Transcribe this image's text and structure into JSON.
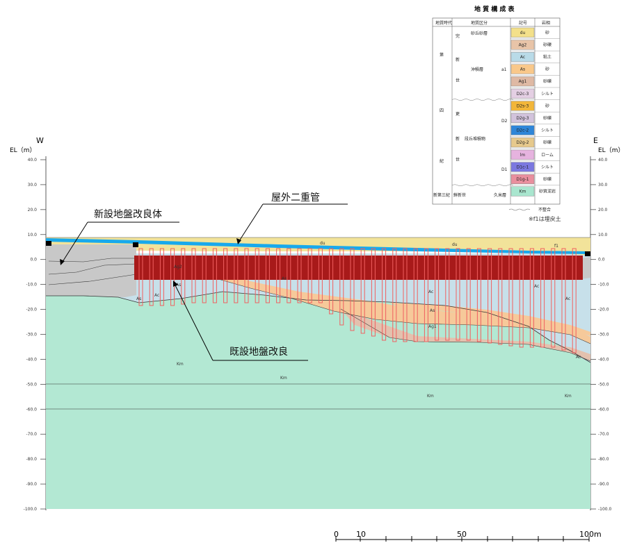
{
  "west_label": "W",
  "east_label": "E",
  "elevation_axis_label": "EL（m）",
  "elevation_ticks": [
    "40.0",
    "30.0",
    "20.0",
    "10.0",
    "0.0",
    "-10.0",
    "-20.0",
    "-30.0",
    "-40.0",
    "-50.0",
    "-60.0",
    "-70.0",
    "-80.0",
    "-90.0",
    "-100.0"
  ],
  "elevation_tick_values": [
    40,
    30,
    20,
    10,
    0,
    -10,
    -20,
    -30,
    -40,
    -50,
    -60,
    -70,
    -80,
    -90,
    -100
  ],
  "callouts": {
    "outdoor_pipe": "屋外二重管",
    "new_improvement": "新設地盤改良体",
    "existing_improvement": "既設地盤改良"
  },
  "layer_labels": {
    "du_left": "du",
    "du_right": "du",
    "f1": "f1",
    "ag2": "Ag2",
    "ag1": "Ag1",
    "as1": "As",
    "as2": "As",
    "as3": "As",
    "ac1": "Ac",
    "ac2": "Ac",
    "ac3": "Ac",
    "ac4": "Ac",
    "as_w": "As",
    "ac_w": "Ac",
    "km1": "Km",
    "km2": "Km",
    "km3": "Km",
    "km4": "Km"
  },
  "scale_bar": {
    "labels": [
      "0",
      "10",
      "50",
      "100m"
    ]
  },
  "legend": {
    "title": "地 質 構 成 表",
    "headers": [
      "地質時代",
      "地質区分",
      "記号",
      "岩相"
    ],
    "era_chars": [
      "第",
      "四",
      "紀"
    ],
    "epoch_holocene": [
      "完",
      "新",
      "世"
    ],
    "epoch_pleistocene": [
      "更",
      "新",
      "世"
    ],
    "dune_sand": "砂丘砂層",
    "alluvium": "沖積層",
    "terrace": "段丘堆積物",
    "kume": "久米層",
    "neogene": "新第三紀",
    "pliocene": "鮮新世",
    "group_a1": "a1",
    "group_d2": "D2",
    "group_d1": "D1",
    "rows": [
      {
        "code": "du",
        "rock": "砂",
        "color": "#f3e08a"
      },
      {
        "code": "Ag2",
        "rock": "砂礫",
        "color": "#e8c4a8"
      },
      {
        "code": "Ac",
        "rock": "粘土",
        "color": "#b9dbe8"
      },
      {
        "code": "As",
        "rock": "砂",
        "color": "#f9c88a"
      },
      {
        "code": "Ag1",
        "rock": "砂礫",
        "color": "#dfb9a4"
      },
      {
        "code": "D2c-3",
        "rock": "シルト",
        "color": "#e4cfe3"
      },
      {
        "code": "D2s-3",
        "rock": "砂",
        "color": "#f2b63a"
      },
      {
        "code": "D2g-3",
        "rock": "砂礫",
        "color": "#d2c3dc"
      },
      {
        "code": "D2c-2",
        "rock": "シルト",
        "color": "#2f86d8"
      },
      {
        "code": "D2g-2",
        "rock": "砂礫",
        "color": "#e6c98c"
      },
      {
        "code": "lm",
        "rock": "ローム",
        "color": "#e6b3df"
      },
      {
        "code": "D1c-1",
        "rock": "シルト",
        "color": "#7b78e0"
      },
      {
        "code": "D1g-1",
        "rock": "砂礫",
        "color": "#e98f9e"
      },
      {
        "code": "Km",
        "rock": "砂質泥岩",
        "color": "#a9e6cf"
      }
    ],
    "unconformity_note": "不整合",
    "fill_note": "※f1は埋戻土"
  },
  "colors": {
    "km": "#b3e8d3",
    "ac": "#c7e0ea",
    "as": "#f6c99a",
    "ag": "#e3c1ae",
    "du": "#f2e39a",
    "water": "#18a9ec",
    "improvement": "#a81a1a",
    "existing_pile": "#f06060",
    "new_body": "#c8c8c8"
  }
}
